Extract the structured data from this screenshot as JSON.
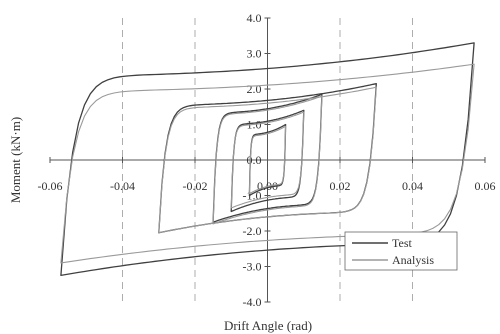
{
  "chart_data": {
    "type": "line",
    "xlabel": "Drift Angle (rad)",
    "ylabel": "Moment (kN·m)",
    "xlim": [
      -0.06,
      0.06
    ],
    "ylim": [
      -4.0,
      4.0
    ],
    "x_ticks": [
      -0.06,
      -0.04,
      -0.02,
      0.0,
      0.02,
      0.04,
      0.06
    ],
    "x_tick_labels": [
      "-0.06",
      "-0.04",
      "-0.02",
      "0.00",
      "0.02",
      "0.04",
      "0.06"
    ],
    "y_ticks": [
      4.0,
      3.0,
      2.0,
      1.0,
      0.0,
      -1.0,
      -2.0,
      -3.0,
      -4.0
    ],
    "y_tick_labels": [
      "4.0",
      "3.0",
      "2.0",
      "1.0",
      "0.0",
      "-1.0",
      "-2.0",
      "-3.0",
      "-4.0"
    ],
    "grid": "dashed-vertical",
    "legend_position": "bottom-right",
    "series": [
      {
        "name": "Test",
        "color": "#404040",
        "loops": [
          {
            "amp": 0.005,
            "m_pos": 1.0,
            "m_neg": -1.0
          },
          {
            "amp": 0.01,
            "m_pos": 1.4,
            "m_neg": -1.45
          },
          {
            "amp": 0.015,
            "m_pos": 1.85,
            "m_neg": -1.75
          },
          {
            "amp": 0.03,
            "m_pos": 2.15,
            "m_neg": -2.05
          },
          {
            "amp": 0.057,
            "m_pos": 3.3,
            "m_neg": -3.25
          }
        ]
      },
      {
        "name": "Analysis",
        "color": "#9a9a9a",
        "loops": [
          {
            "amp": 0.005,
            "m_pos": 0.95,
            "m_neg": -0.95
          },
          {
            "amp": 0.01,
            "m_pos": 1.35,
            "m_neg": -1.35
          },
          {
            "amp": 0.015,
            "m_pos": 1.8,
            "m_neg": -1.8
          },
          {
            "amp": 0.03,
            "m_pos": 2.05,
            "m_neg": -2.05
          },
          {
            "amp": 0.057,
            "m_pos": 2.7,
            "m_neg": -2.9
          }
        ]
      }
    ]
  }
}
